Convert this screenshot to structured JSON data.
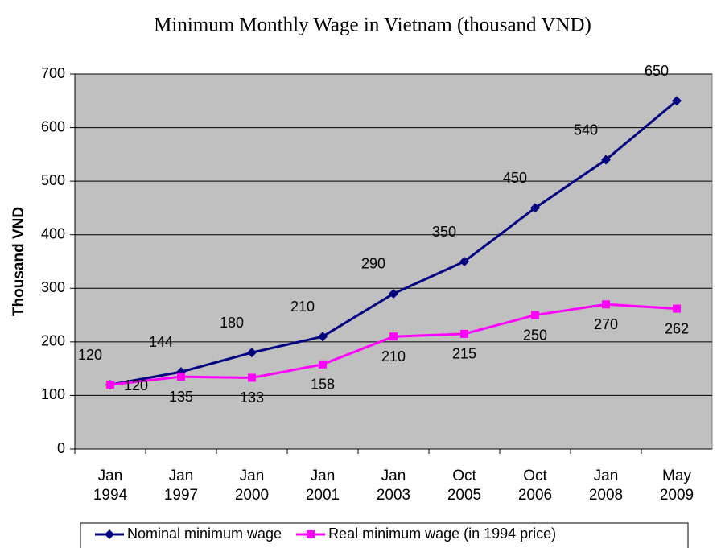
{
  "chart_data": {
    "type": "line",
    "title": "Minimum Monthly Wage in Vietnam (thousand VND)",
    "y_label": "Thousand VND",
    "categories": [
      "Jan 1994",
      "Jan 1997",
      "Jan 2000",
      "Jan 2001",
      "Jan 2003",
      "Oct 2005",
      "Oct 2006",
      "Jan 2008",
      "May 2009"
    ],
    "series": [
      {
        "name": "Nominal minimum wage",
        "color": "#000080",
        "marker": "diamond",
        "values": [
          120,
          144,
          180,
          210,
          290,
          350,
          450,
          540,
          650
        ]
      },
      {
        "name": "Real minimum wage (in 1994 price)",
        "color": "#ff00ff",
        "marker": "square",
        "values": [
          120,
          135,
          133,
          158,
          210,
          215,
          250,
          270,
          262
        ]
      }
    ],
    "ylim": [
      0,
      700
    ],
    "yticks": [
      0,
      100,
      200,
      300,
      400,
      500,
      600,
      700
    ],
    "grid": true,
    "legend": "bottom"
  }
}
